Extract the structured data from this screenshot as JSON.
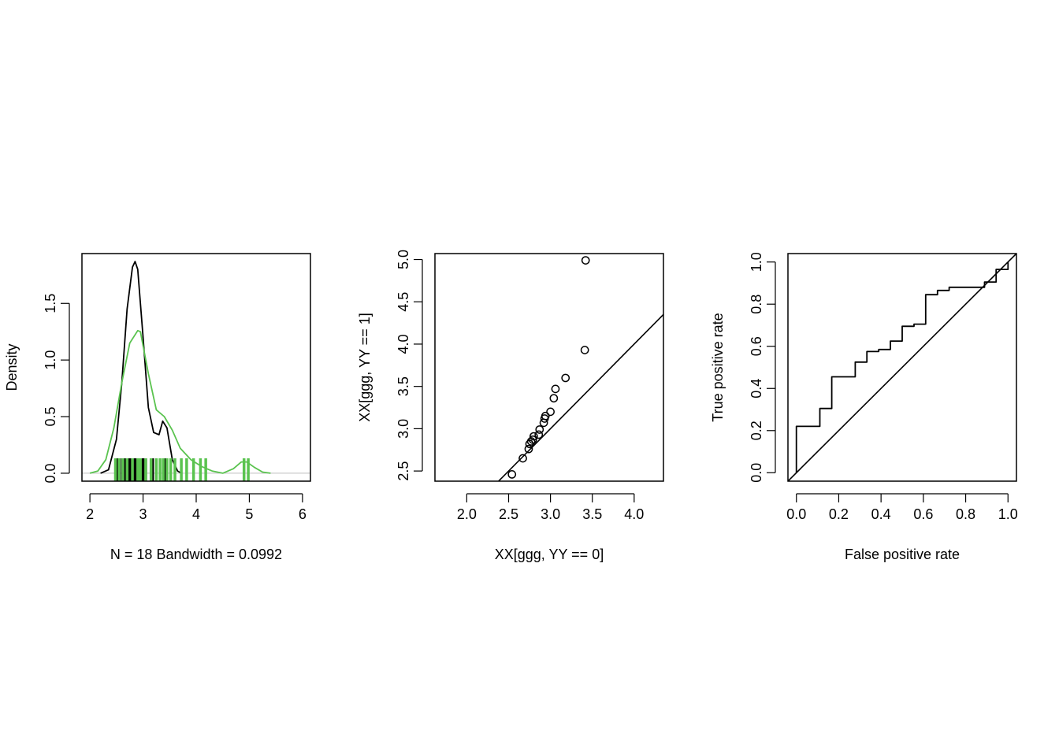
{
  "chart_data": [
    {
      "type": "line",
      "subtype": "density-with-rug",
      "xlabel": "N = 18   Bandwidth = 0.0992",
      "ylabel": "Density",
      "xlim": [
        1.85,
        6.15
      ],
      "ylim": [
        -0.07,
        1.94
      ],
      "x_ticks": [
        2,
        3,
        4,
        5,
        6
      ],
      "x_tick_labels": [
        "2",
        "3",
        "4",
        "5",
        "6"
      ],
      "y_ticks": [
        0.0,
        0.5,
        1.0,
        1.5
      ],
      "y_tick_labels": [
        "0.0",
        "0.5",
        "1.0",
        "1.5"
      ],
      "zero_line": true,
      "series": [
        {
          "color": "#000000",
          "x": [
            2.2,
            2.35,
            2.5,
            2.6,
            2.7,
            2.8,
            2.85,
            2.9,
            3.0,
            3.1,
            3.2,
            3.3,
            3.37,
            3.45,
            3.55,
            3.65,
            3.72
          ],
          "y": [
            0.0,
            0.03,
            0.3,
            0.8,
            1.45,
            1.82,
            1.87,
            1.8,
            1.2,
            0.58,
            0.36,
            0.34,
            0.46,
            0.4,
            0.12,
            0.02,
            0.0
          ],
          "rug": [
            2.52,
            2.56,
            2.62,
            2.66,
            2.7,
            2.73,
            2.76,
            2.79,
            2.82,
            2.85,
            2.88,
            2.91,
            2.94,
            2.97,
            3.0,
            3.05,
            3.18,
            3.42
          ]
        },
        {
          "color": "#5ac34f",
          "x": [
            2.0,
            2.15,
            2.3,
            2.45,
            2.6,
            2.75,
            2.9,
            2.95,
            3.1,
            3.25,
            3.4,
            3.55,
            3.7,
            3.9,
            4.1,
            4.3,
            4.5,
            4.7,
            4.85,
            4.95,
            5.1,
            5.25,
            5.4
          ],
          "y": [
            0.0,
            0.02,
            0.12,
            0.4,
            0.8,
            1.15,
            1.26,
            1.25,
            0.88,
            0.56,
            0.5,
            0.38,
            0.22,
            0.12,
            0.06,
            0.02,
            0.0,
            0.04,
            0.1,
            0.1,
            0.05,
            0.01,
            0.0
          ],
          "rug": [
            2.48,
            2.55,
            2.62,
            2.7,
            2.8,
            2.9,
            2.95,
            3.05,
            3.15,
            3.25,
            3.32,
            3.38,
            3.45,
            3.52,
            3.6,
            3.72,
            3.82,
            3.95,
            4.08,
            4.18,
            4.9,
            4.98
          ]
        }
      ]
    },
    {
      "type": "scatter",
      "subtype": "qq-plot",
      "xlabel": "XX[ggg, YY == 0]",
      "ylabel": "XX[ggg, YY == 1]",
      "xlim": [
        1.62,
        4.35
      ],
      "ylim": [
        2.38,
        5.07
      ],
      "x_ticks": [
        2.0,
        2.5,
        3.0,
        3.5,
        4.0
      ],
      "x_tick_labels": [
        "2.0",
        "2.5",
        "3.0",
        "3.5",
        "4.0"
      ],
      "y_ticks": [
        2.5,
        3.0,
        3.5,
        4.0,
        4.5,
        5.0
      ],
      "y_tick_labels": [
        "2.5",
        "3.0",
        "3.5",
        "4.0",
        "4.5",
        "5.0"
      ],
      "reference_line": "y = x",
      "points": {
        "x": [
          2.54,
          2.67,
          2.74,
          2.75,
          2.77,
          2.79,
          2.8,
          2.86,
          2.87,
          2.92,
          2.93,
          2.94,
          3.0,
          3.04,
          3.06,
          3.18,
          3.41,
          3.42
        ],
        "y": [
          2.46,
          2.65,
          2.76,
          2.82,
          2.85,
          2.87,
          2.91,
          2.93,
          2.99,
          3.07,
          3.12,
          3.15,
          3.2,
          3.36,
          3.47,
          3.6,
          3.93,
          4.99
        ]
      }
    },
    {
      "type": "line",
      "subtype": "roc-curve",
      "xlabel": "False positive rate",
      "ylabel": "True positive rate",
      "xlim": [
        -0.04,
        1.04
      ],
      "ylim": [
        -0.04,
        1.04
      ],
      "x_ticks": [
        0.0,
        0.2,
        0.4,
        0.6,
        0.8,
        1.0
      ],
      "x_tick_labels": [
        "0.0",
        "0.2",
        "0.4",
        "0.6",
        "0.8",
        "1.0"
      ],
      "y_ticks": [
        0.0,
        0.2,
        0.4,
        0.6,
        0.8,
        1.0
      ],
      "y_tick_labels": [
        "0.0",
        "0.2",
        "0.4",
        "0.6",
        "0.8",
        "1.0"
      ],
      "reference_line": "y = x",
      "series": [
        {
          "x": [
            0.0,
            0.0,
            0.111,
            0.111,
            0.167,
            0.167,
            0.278,
            0.278,
            0.333,
            0.333,
            0.389,
            0.389,
            0.444,
            0.444,
            0.5,
            0.5,
            0.556,
            0.556,
            0.611,
            0.611,
            0.667,
            0.667,
            0.722,
            0.722,
            0.889,
            0.889,
            0.944,
            0.944,
            1.0,
            1.0
          ],
          "y": [
            0.0,
            0.22,
            0.22,
            0.305,
            0.305,
            0.455,
            0.455,
            0.525,
            0.525,
            0.575,
            0.575,
            0.585,
            0.585,
            0.625,
            0.625,
            0.695,
            0.695,
            0.705,
            0.705,
            0.845,
            0.845,
            0.865,
            0.865,
            0.88,
            0.88,
            0.905,
            0.905,
            0.965,
            0.965,
            1.0
          ]
        }
      ]
    }
  ]
}
